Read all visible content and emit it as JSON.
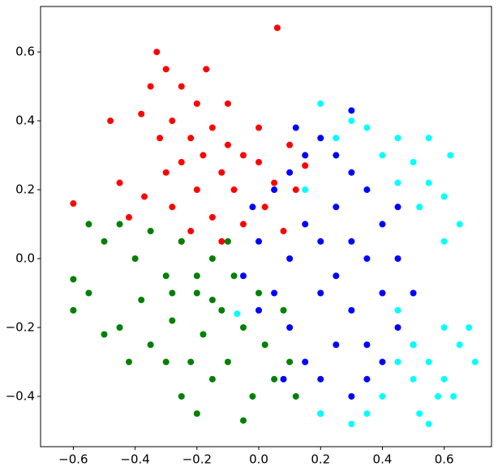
{
  "chart_data": {
    "type": "scatter",
    "xlim": [
      -0.706,
      0.753
    ],
    "ylim": [
      -0.546,
      0.732
    ],
    "xticks": [
      {
        "value": -0.6,
        "label": "−0.6"
      },
      {
        "value": -0.4,
        "label": "−0.4"
      },
      {
        "value": -0.2,
        "label": "−0.2"
      },
      {
        "value": 0,
        "label": "0.0"
      },
      0.2,
      0.4,
      0.6
    ],
    "yticks": [
      {
        "value": -0.4,
        "label": "−0.4"
      },
      {
        "value": -0.2,
        "label": "−0.2"
      },
      {
        "value": 0,
        "label": "0.0"
      },
      0.2,
      0.4,
      0.6
    ],
    "series": [
      {
        "color": "#ff0000",
        "x": [
          -0.3,
          -0.25,
          -0.2,
          -0.28,
          -0.15,
          -0.22,
          -0.1,
          -0.05,
          -0.18,
          -0.25,
          -0.3,
          -0.12,
          0.0,
          0.05,
          -0.08,
          -0.2,
          -0.28,
          -0.15,
          -0.05,
          0.02,
          -0.22,
          -0.32,
          -0.35,
          -0.33,
          -0.37,
          -0.42,
          -0.45,
          -0.48,
          0.06,
          -0.6,
          -0.1,
          0.0,
          0.1,
          0.15,
          -0.17,
          -0.38,
          -0.12,
          0.08,
          -0.25,
          0.12
        ],
        "y": [
          0.55,
          0.5,
          0.45,
          0.4,
          0.38,
          0.35,
          0.33,
          0.3,
          0.3,
          0.28,
          0.25,
          0.25,
          0.28,
          0.22,
          0.2,
          0.2,
          0.15,
          0.12,
          0.1,
          0.15,
          0.08,
          0.35,
          0.5,
          0.6,
          0.18,
          0.12,
          0.22,
          0.4,
          0.67,
          0.16,
          0.45,
          0.38,
          0.33,
          0.27,
          0.55,
          0.42,
          0.05,
          0.08,
          0.05,
          0.2
        ]
      },
      {
        "color": "#008000",
        "x": [
          -0.6,
          -0.55,
          -0.5,
          -0.45,
          -0.4,
          -0.38,
          -0.35,
          -0.3,
          -0.28,
          -0.25,
          -0.22,
          -0.2,
          -0.18,
          -0.15,
          -0.12,
          -0.1,
          -0.08,
          -0.05,
          0.0,
          0.02,
          0.05,
          -0.02,
          -0.15,
          -0.25,
          -0.3,
          -0.42,
          -0.5,
          -0.55,
          -0.35,
          -0.1,
          0.08,
          0.1,
          0.12,
          -0.05,
          -0.2,
          -0.6,
          -0.45,
          -0.2,
          -0.28,
          -0.15
        ],
        "y": [
          -0.06,
          -0.1,
          0.05,
          -0.2,
          0.0,
          -0.12,
          -0.25,
          -0.05,
          -0.18,
          0.05,
          -0.3,
          -0.1,
          -0.22,
          0.0,
          -0.15,
          -0.3,
          -0.05,
          -0.2,
          -0.1,
          -0.25,
          -0.35,
          -0.4,
          -0.35,
          -0.4,
          -0.3,
          -0.3,
          -0.22,
          0.1,
          0.08,
          0.05,
          -0.15,
          -0.3,
          -0.4,
          -0.47,
          -0.45,
          -0.15,
          0.1,
          -0.05,
          -0.1,
          -0.12
        ]
      },
      {
        "color": "#0000ff",
        "x": [
          0.0,
          0.05,
          0.1,
          0.15,
          0.2,
          0.25,
          0.3,
          0.35,
          0.4,
          0.45,
          0.5,
          0.45,
          0.4,
          0.35,
          0.3,
          0.25,
          0.2,
          0.15,
          0.1,
          0.05,
          0.1,
          0.15,
          0.2,
          0.25,
          0.3,
          0.2,
          0.3,
          0.35,
          0.25,
          0.2,
          0.3,
          -0.05,
          0.0,
          0.4,
          0.45,
          0.12,
          -0.02,
          0.08,
          0.5,
          0.35
        ],
        "y": [
          0.05,
          0.2,
          0.25,
          0.3,
          0.35,
          0.3,
          0.25,
          0.2,
          0.1,
          0.0,
          -0.1,
          -0.2,
          -0.3,
          -0.25,
          -0.15,
          -0.05,
          0.05,
          0.1,
          0.0,
          -0.1,
          -0.2,
          -0.3,
          -0.35,
          -0.25,
          -0.4,
          -0.45,
          0.43,
          0.0,
          0.15,
          -0.1,
          0.05,
          -0.05,
          -0.15,
          -0.1,
          0.15,
          0.38,
          0.15,
          -0.35,
          -0.25,
          -0.35
        ]
      },
      {
        "color": "#00ffff",
        "x": [
          0.4,
          0.45,
          0.5,
          0.55,
          0.45,
          0.35,
          0.3,
          0.2,
          0.6,
          0.52,
          0.62,
          0.55,
          0.6,
          0.55,
          0.5,
          0.6,
          0.65,
          0.68,
          0.45,
          0.5,
          0.58,
          0.52,
          0.4,
          0.35,
          0.3,
          0.2,
          0.55,
          0.65,
          0.6,
          0.45,
          -0.07,
          0.15,
          0.25,
          0.63,
          0.7
        ],
        "y": [
          0.3,
          0.35,
          0.28,
          0.22,
          0.22,
          0.38,
          0.4,
          0.45,
          0.18,
          0.15,
          0.3,
          0.35,
          -0.2,
          -0.3,
          -0.35,
          -0.35,
          -0.25,
          -0.2,
          -0.3,
          -0.25,
          -0.4,
          -0.45,
          -0.4,
          -0.45,
          -0.48,
          -0.45,
          -0.48,
          0.1,
          0.05,
          -0.15,
          -0.16,
          0.2,
          0.35,
          -0.4,
          -0.3
        ]
      }
    ]
  }
}
